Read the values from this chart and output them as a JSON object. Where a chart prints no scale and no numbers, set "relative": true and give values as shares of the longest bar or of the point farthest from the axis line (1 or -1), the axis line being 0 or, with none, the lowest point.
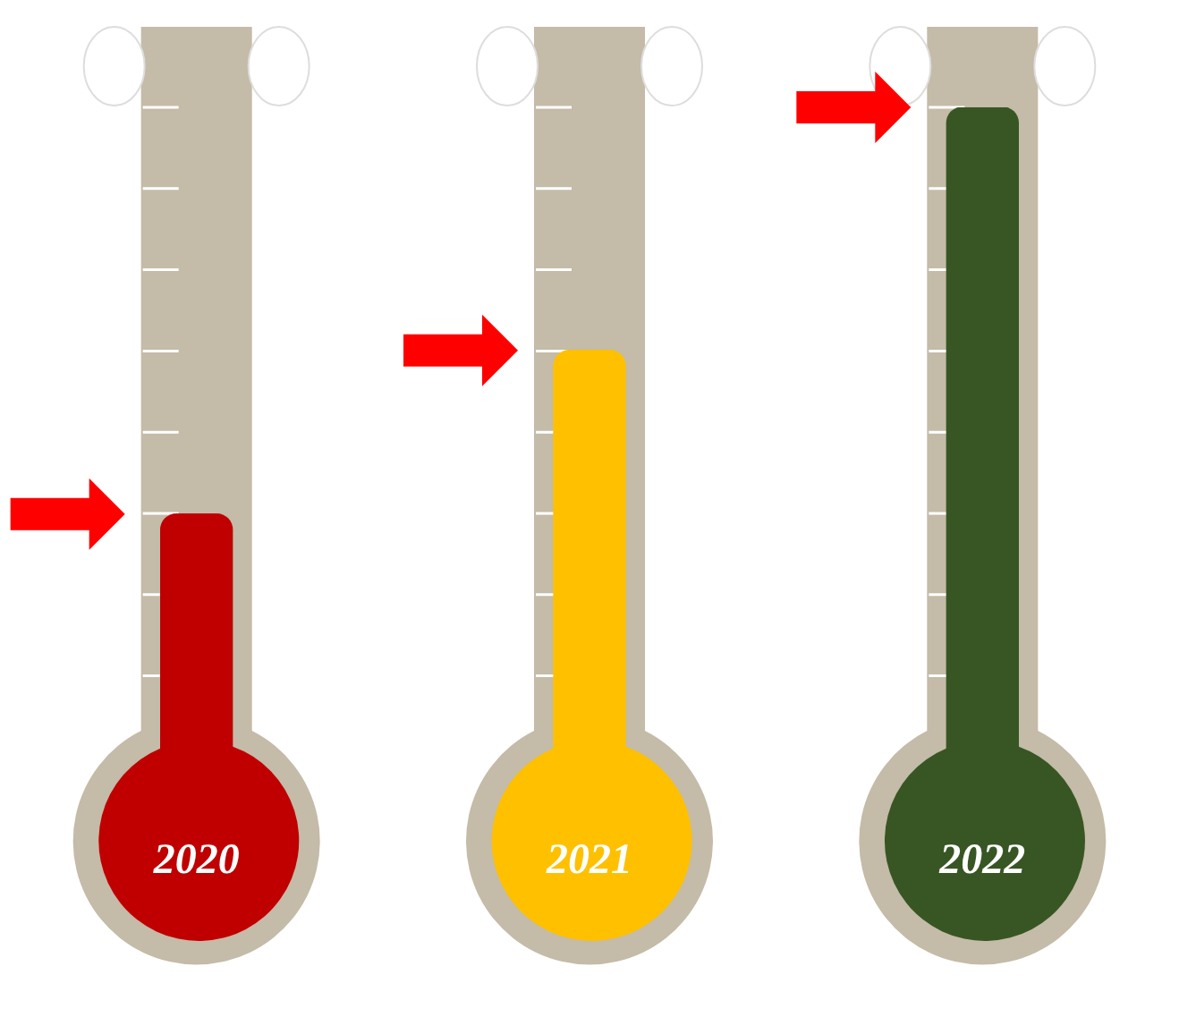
{
  "chart_data": {
    "type": "bar",
    "relative": true,
    "categories": [
      "2020",
      "2021",
      "2022"
    ],
    "values": [
      0.374,
      0.626,
      1
    ],
    "colors": [
      "#c00000",
      "#ffc000",
      "#385623"
    ],
    "grid": false,
    "legend": false
  }
}
